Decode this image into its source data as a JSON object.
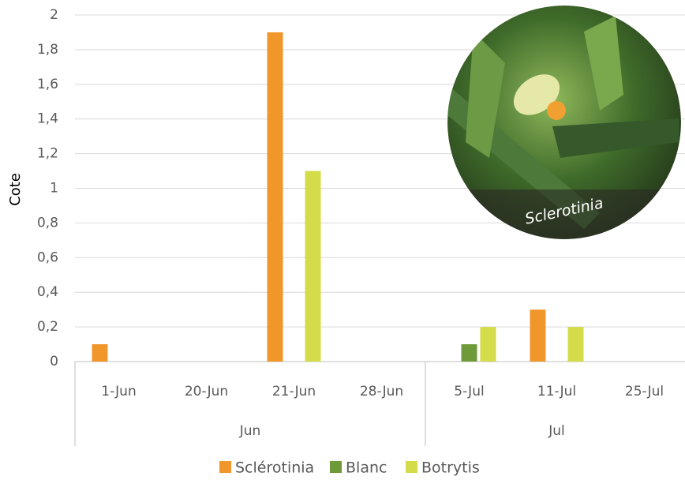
{
  "chart_data": {
    "type": "bar",
    "y_label": "Cote",
    "annotations": [
      "Sclerotinia"
    ],
    "categories": [
      "1-Jun",
      "20-Jun",
      "21-Jun",
      "28-Jun",
      "5-Jul",
      "11-Jul",
      "25-Jul"
    ],
    "groups": [
      {
        "label": "Jun",
        "start": 0,
        "end": 3
      },
      {
        "label": "Jul",
        "start": 4,
        "end": 6
      }
    ],
    "series": [
      {
        "name": "Sclérotinia",
        "color": "#f0962a",
        "values": [
          0.1,
          0,
          1.9,
          0,
          0,
          0.3,
          0
        ]
      },
      {
        "name": "Blanc",
        "color": "#6f9a3a",
        "values": [
          0,
          0,
          0,
          0,
          0.1,
          0,
          0
        ]
      },
      {
        "name": "Botrytis",
        "color": "#d4dc4a",
        "values": [
          0,
          0,
          1.1,
          0,
          0.2,
          0.2,
          0
        ]
      }
    ],
    "ylim": [
      0,
      2
    ],
    "yticks": [
      0,
      {
        "value": 0.2,
        "label": "0,2"
      },
      {
        "value": 0.4,
        "label": "0,4"
      },
      {
        "value": 0.6,
        "label": "0,6"
      },
      {
        "value": 0.8,
        "label": "0,8"
      },
      1,
      {
        "value": 1.2,
        "label": "1,2"
      },
      {
        "value": 1.4,
        "label": "1,4"
      },
      {
        "value": 1.6,
        "label": "1,6"
      },
      {
        "value": 1.8,
        "label": "1,8"
      },
      2
    ],
    "grid": true
  }
}
